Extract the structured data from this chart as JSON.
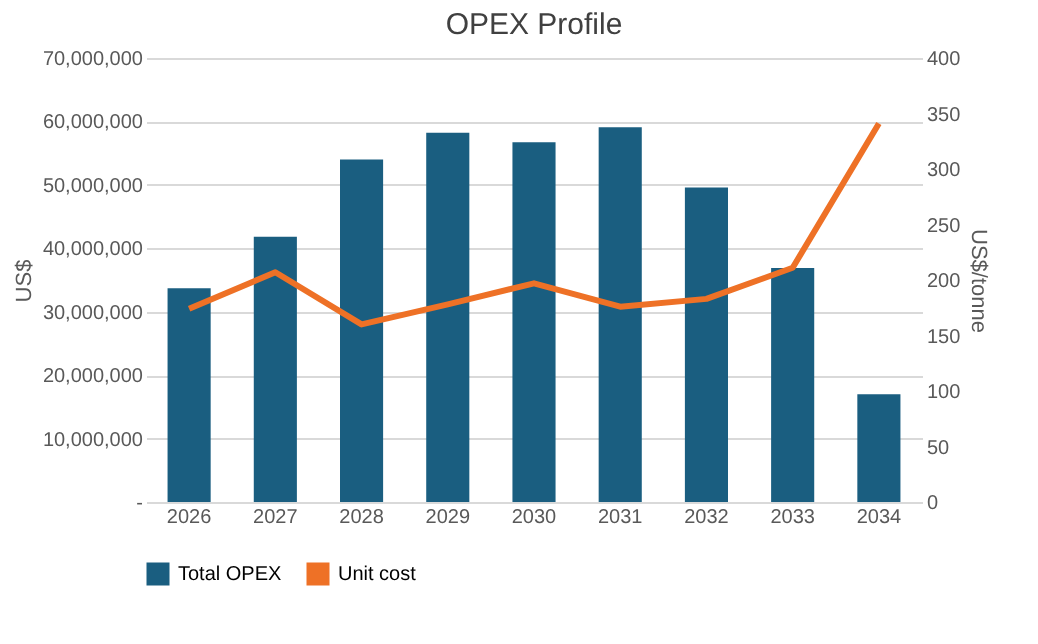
{
  "chart_data": {
    "type": "bar",
    "title": "OPEX Profile",
    "ylabel": "US$",
    "y2label": "US$/tonne",
    "categories": [
      "2026",
      "2027",
      "2028",
      "2029",
      "2030",
      "2031",
      "2032",
      "2033",
      "2034"
    ],
    "series": [
      {
        "name": "Total OPEX",
        "color": "#1a5e80",
        "values": [
          33700000,
          41800000,
          54000000,
          58200000,
          56700000,
          59100000,
          49600000,
          36900000,
          17000000
        ]
      },
      {
        "name": "Unit cost",
        "type": "line",
        "axis": "y2",
        "color": "#ee7126",
        "values": [
          174,
          207,
          160,
          178,
          197,
          176,
          183,
          211,
          341
        ]
      }
    ],
    "ylim": [
      0,
      70000000
    ],
    "yticks": [
      {
        "value": 0,
        "label": "-"
      },
      {
        "value": 10000000,
        "label": "10,000,000"
      },
      {
        "value": 20000000,
        "label": "20,000,000"
      },
      {
        "value": 30000000,
        "label": "30,000,000"
      },
      {
        "value": 40000000,
        "label": "40,000,000"
      },
      {
        "value": 50000000,
        "label": "50,000,000"
      },
      {
        "value": 60000000,
        "label": "60,000,000"
      },
      {
        "value": 70000000,
        "label": "70,000,000"
      }
    ],
    "y2lim": [
      0,
      400
    ],
    "y2ticks": [
      0,
      50,
      100,
      150,
      200,
      250,
      300,
      350,
      400
    ],
    "grid": "y",
    "legend": "bottom"
  }
}
